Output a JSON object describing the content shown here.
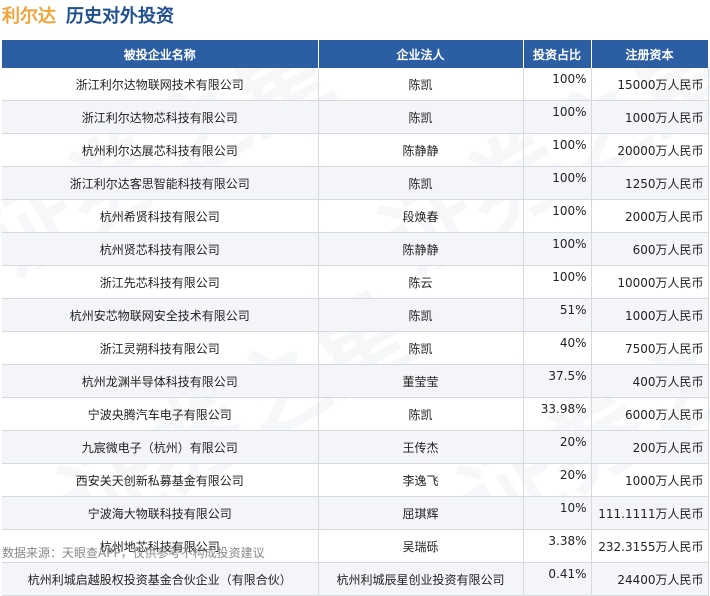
{
  "header": {
    "company": "利尔达",
    "section": "历史对外投资"
  },
  "watermark": "证券之星",
  "table": {
    "columns": [
      "被投企业名称",
      "企业法人",
      "投资占比",
      "注册资本"
    ],
    "rows": [
      {
        "name": "浙江利尔达物联网技术有限公司",
        "legal": "陈凯",
        "ratio": "100%",
        "capital": "15000万人民币"
      },
      {
        "name": "浙江利尔达物芯科技有限公司",
        "legal": "陈凯",
        "ratio": "100%",
        "capital": "1000万人民币"
      },
      {
        "name": "杭州利尔达展芯科技有限公司",
        "legal": "陈静静",
        "ratio": "100%",
        "capital": "20000万人民币"
      },
      {
        "name": "浙江利尔达客思智能科技有限公司",
        "legal": "陈凯",
        "ratio": "100%",
        "capital": "1250万人民币"
      },
      {
        "name": "杭州希贤科技有限公司",
        "legal": "段焕春",
        "ratio": "100%",
        "capital": "2000万人民币"
      },
      {
        "name": "杭州贤芯科技有限公司",
        "legal": "陈静静",
        "ratio": "100%",
        "capital": "600万人民币"
      },
      {
        "name": "浙江先芯科技有限公司",
        "legal": "陈云",
        "ratio": "100%",
        "capital": "10000万人民币"
      },
      {
        "name": "杭州安芯物联网安全技术有限公司",
        "legal": "陈凯",
        "ratio": "51%",
        "capital": "1000万人民币"
      },
      {
        "name": "浙江灵朔科技有限公司",
        "legal": "陈凯",
        "ratio": "40%",
        "capital": "7500万人民币"
      },
      {
        "name": "杭州龙渊半导体科技有限公司",
        "legal": "董莹莹",
        "ratio": "37.5%",
        "capital": "400万人民币"
      },
      {
        "name": "宁波央腾汽车电子有限公司",
        "legal": "陈凯",
        "ratio": "33.98%",
        "capital": "6000万人民币"
      },
      {
        "name": "九宸微电子（杭州）有限公司",
        "legal": "王传杰",
        "ratio": "20%",
        "capital": "200万人民币"
      },
      {
        "name": "西安关天创新私募基金有限公司",
        "legal": "李逸飞",
        "ratio": "20%",
        "capital": "1000万人民币"
      },
      {
        "name": "宁波海大物联科技有限公司",
        "legal": "屈琪辉",
        "ratio": "10%",
        "capital": "111.1111万人民币"
      },
      {
        "name": "杭州地芯科技有限公司",
        "legal": "吴瑞砾",
        "ratio": "3.38%",
        "capital": "232.3155万人民币"
      },
      {
        "name": "杭州利城启越股权投资基金合伙企业（有限合伙）",
        "legal": "杭州利城辰星创业投资有限公司",
        "ratio": "0.41%",
        "capital": "24400万人民币"
      }
    ]
  },
  "footer": "数据来源：天眼查APP，仅供参考不构成投资建议"
}
